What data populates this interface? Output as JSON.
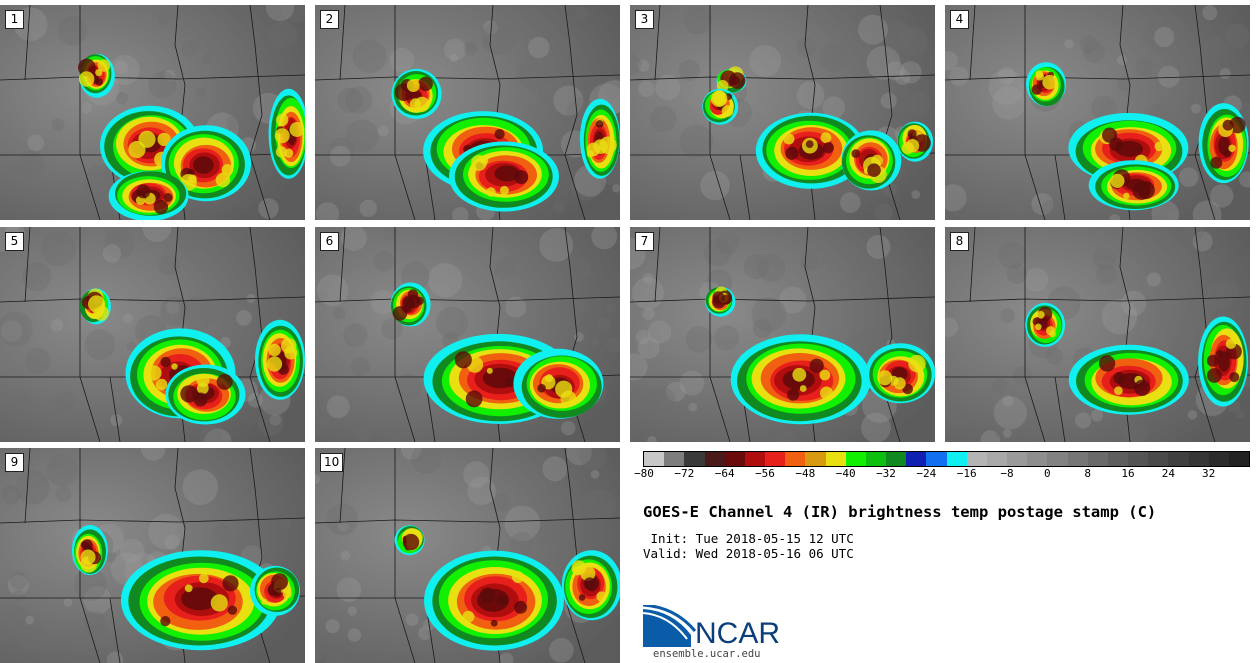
{
  "panels": [
    {
      "label": "1"
    },
    {
      "label": "2"
    },
    {
      "label": "3"
    },
    {
      "label": "4"
    },
    {
      "label": "5"
    },
    {
      "label": "6"
    },
    {
      "label": "7"
    },
    {
      "label": "8"
    },
    {
      "label": "9"
    },
    {
      "label": "10"
    }
  ],
  "colorbar": {
    "colors": [
      "#c8c8c8",
      "#7d7d7d",
      "#3a3a3a",
      "#4a1a1a",
      "#6a0a0a",
      "#b00e0e",
      "#e8201c",
      "#f06010",
      "#d89a10",
      "#e8e010",
      "#10f000",
      "#0cc010",
      "#108a20",
      "#1020b0",
      "#1070f0",
      "#10f0f0",
      "#b4b4b4",
      "#a8a8a8",
      "#9a9a9a",
      "#8e8e8e",
      "#828282",
      "#767676",
      "#6a6a6a",
      "#5e5e5e",
      "#545454",
      "#4a4a4a",
      "#404040",
      "#363636",
      "#2c2c2c",
      "#222222"
    ],
    "tick_labels": [
      "−80",
      "−72",
      "−64",
      "−56",
      "−48",
      "−40",
      "−32",
      "−24",
      "−16",
      "−8",
      "0",
      "8",
      "16",
      "24",
      "32"
    ],
    "tick_values": [
      -80,
      -72,
      -64,
      -56,
      -48,
      -40,
      -32,
      -24,
      -16,
      -8,
      0,
      8,
      16,
      24,
      32
    ],
    "range": [
      -80,
      40
    ]
  },
  "title": "GOES-E Channel 4 (IR) brightness temp postage stamp (C)",
  "init_line": " Init: Tue 2018-05-15 12 UTC",
  "valid_line": "Valid: Wed 2018-05-16 06 UTC",
  "logo_text": "NCAR",
  "url": "ensemble.ucar.edu"
}
